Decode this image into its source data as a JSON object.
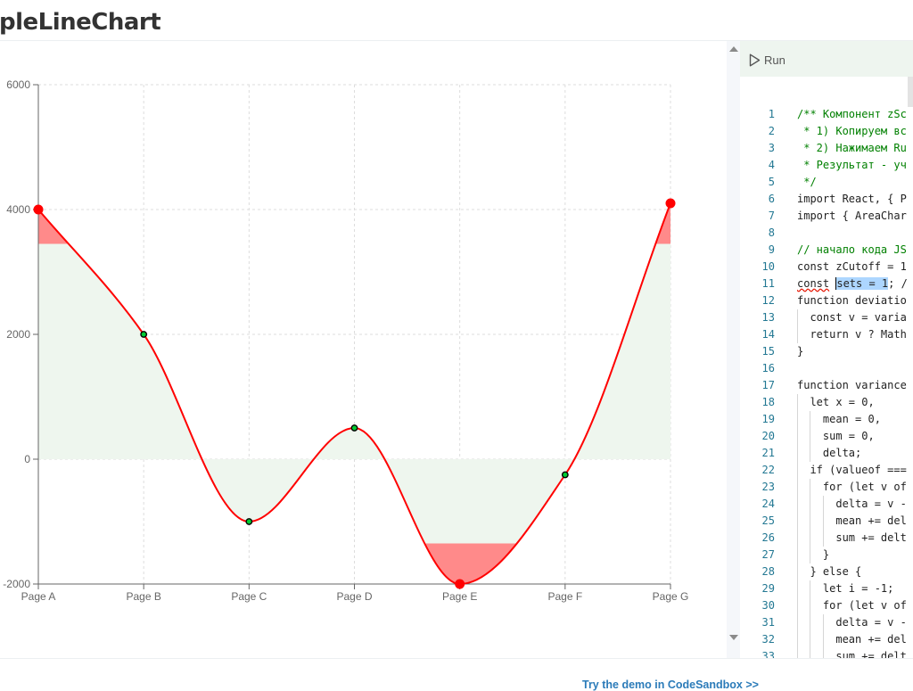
{
  "page": {
    "title": "pleLineChart",
    "demo_link": "Try the demo in CodeSandbox >>"
  },
  "colors": {
    "line": "#ff0000",
    "area_fill": "#eef6ee",
    "highlight_fill": "#ff8a8a",
    "outlier_dot": "#ff0000",
    "normal_dot": "#00cc33",
    "grid": "#dddddd"
  },
  "chart_data": {
    "type": "line",
    "categories": [
      "Page A",
      "Page B",
      "Page C",
      "Page D",
      "Page E",
      "Page F",
      "Page G"
    ],
    "values": [
      4000,
      2000,
      -1000,
      500,
      -2000,
      -250,
      4100
    ],
    "outliers": [
      "Page A",
      "Page E",
      "Page G"
    ],
    "highlight_bands": [
      {
        "from": 3450,
        "to": 6000
      },
      {
        "from": -2000,
        "to": -1350
      }
    ],
    "yticks": [
      -2000,
      0,
      2000,
      4000,
      6000
    ],
    "ylim": [
      -2000,
      6000
    ],
    "grid": true,
    "curve": "smooth"
  },
  "editor": {
    "run_label": "Run",
    "run_icon": "play-icon",
    "lines": [
      {
        "n": "1",
        "text": "/** Компонент zSc",
        "cls": "comment"
      },
      {
        "n": "2",
        "text": " * 1) Копируем вс",
        "cls": "comment"
      },
      {
        "n": "3",
        "text": " * 2) Нажимаем Ru",
        "cls": "comment"
      },
      {
        "n": "4",
        "text": " * Результат - уч",
        "cls": "comment"
      },
      {
        "n": "5",
        "text": " */",
        "cls": "comment"
      },
      {
        "n": "6",
        "text": "import React, { P",
        "cls": ""
      },
      {
        "n": "7",
        "text": "import { AreaChar",
        "cls": ""
      },
      {
        "n": "8",
        "text": "",
        "cls": ""
      },
      {
        "n": "9",
        "text": "// начало кода JS",
        "cls": "comment"
      },
      {
        "n": "10",
        "text": "const zCutoff = 1",
        "cls": ""
      },
      {
        "n": "11",
        "text": "const sets = 1; /",
        "cls": ""
      },
      {
        "n": "12",
        "text": "function deviatio",
        "cls": ""
      },
      {
        "n": "13",
        "text": "  const v = varia",
        "cls": ""
      },
      {
        "n": "14",
        "text": "  return v ? Math",
        "cls": ""
      },
      {
        "n": "15",
        "text": "}",
        "cls": ""
      },
      {
        "n": "16",
        "text": "",
        "cls": ""
      },
      {
        "n": "17",
        "text": "function variance",
        "cls": ""
      },
      {
        "n": "18",
        "text": "  let x = 0,",
        "cls": ""
      },
      {
        "n": "19",
        "text": "    mean = 0,",
        "cls": ""
      },
      {
        "n": "20",
        "text": "    sum = 0,",
        "cls": ""
      },
      {
        "n": "21",
        "text": "    delta;",
        "cls": ""
      },
      {
        "n": "22",
        "text": "  if (valueof ===",
        "cls": ""
      },
      {
        "n": "23",
        "text": "    for (let v of",
        "cls": ""
      },
      {
        "n": "24",
        "text": "      delta = v -",
        "cls": ""
      },
      {
        "n": "25",
        "text": "      mean += del",
        "cls": ""
      },
      {
        "n": "26",
        "text": "      sum += delt",
        "cls": ""
      },
      {
        "n": "27",
        "text": "    }",
        "cls": ""
      },
      {
        "n": "28",
        "text": "  } else {",
        "cls": ""
      },
      {
        "n": "29",
        "text": "    let i = -1;",
        "cls": ""
      },
      {
        "n": "30",
        "text": "    for (let v of",
        "cls": ""
      },
      {
        "n": "31",
        "text": "      delta = v -",
        "cls": ""
      },
      {
        "n": "32",
        "text": "      mean += del",
        "cls": ""
      },
      {
        "n": "33",
        "text": "      sum += delt",
        "cls": ""
      }
    ]
  }
}
